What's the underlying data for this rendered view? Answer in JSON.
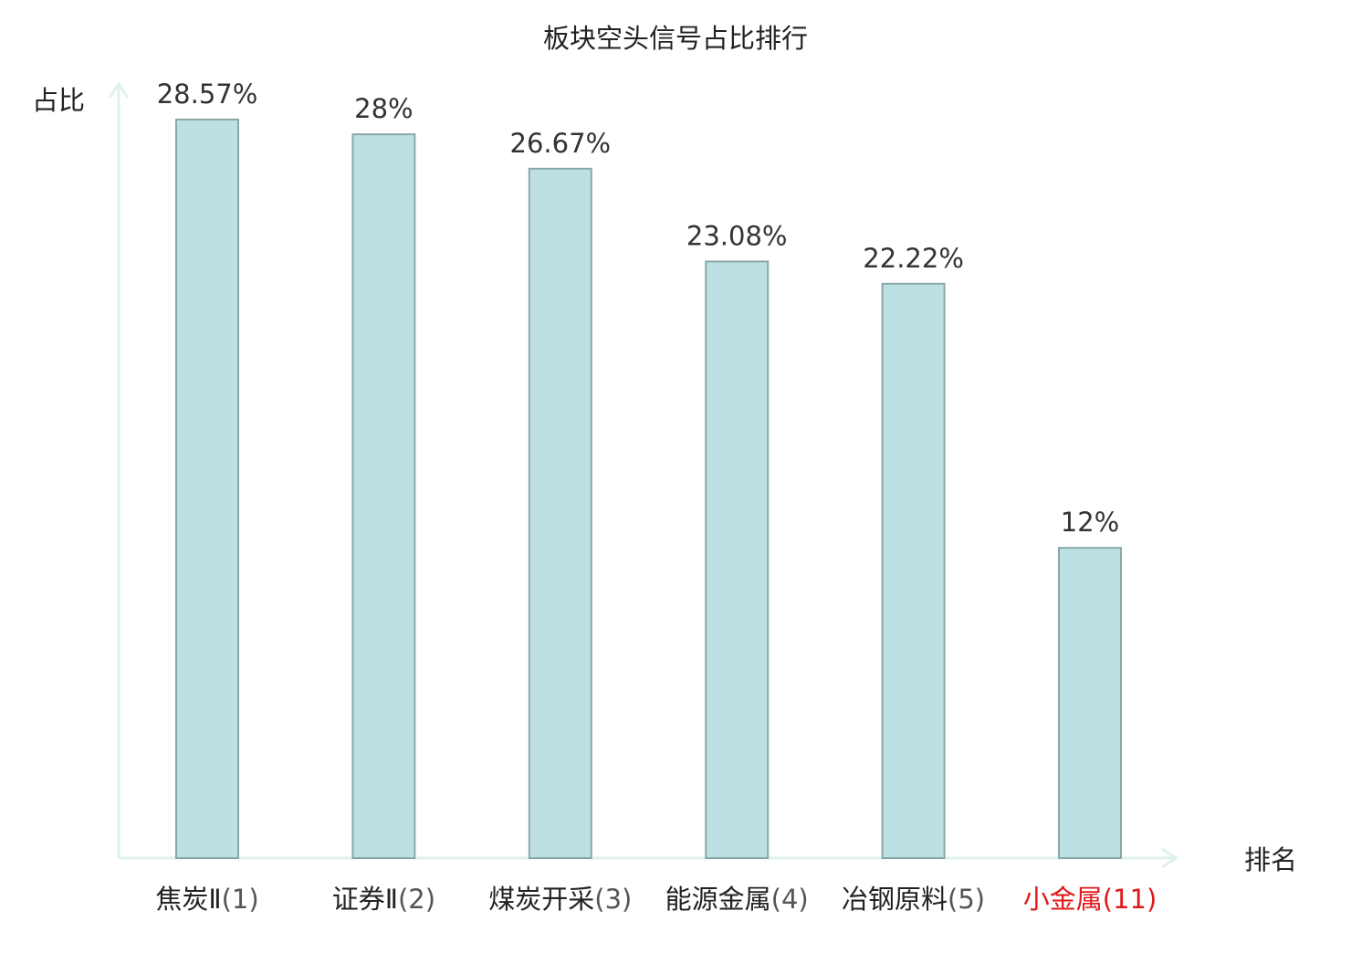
{
  "chart_data": {
    "type": "bar",
    "title": "板块空头信号占比排行",
    "ylabel": "占比",
    "xlabel": "排名",
    "categories": [
      {
        "name": "焦炭Ⅱ",
        "rank": "(1)"
      },
      {
        "name": "证券Ⅱ",
        "rank": "(2)"
      },
      {
        "name": "煤炭开采",
        "rank": "(3)"
      },
      {
        "name": "能源金属",
        "rank": "(4)"
      },
      {
        "name": "冶钢原料",
        "rank": "(5)"
      },
      {
        "name": "小金属",
        "rank": "(11)"
      }
    ],
    "values": [
      28.57,
      28,
      26.67,
      23.08,
      22.22,
      12
    ],
    "value_labels": [
      "28.57%",
      "28%",
      "26.67%",
      "23.08%",
      "22.22%",
      "12%"
    ],
    "highlight_index": 5,
    "ylim": [
      0,
      28.57
    ],
    "grid": false,
    "colors": {
      "bar_fill": "#bde1e3",
      "bar_stroke": "#8aa7a8",
      "axis": "#dff1ef",
      "text": "#222222",
      "value_text": "#333333",
      "highlight_text": "#e0191b"
    }
  }
}
